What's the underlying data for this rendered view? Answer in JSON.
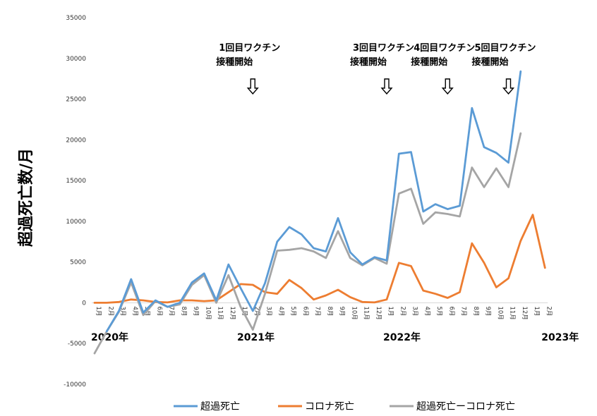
{
  "chart_data": {
    "type": "line",
    "ylabel": "超過死亡数/月",
    "ylim": [
      -10000,
      35000
    ],
    "yticks": [
      35000,
      30000,
      25000,
      20000,
      15000,
      10000,
      5000,
      0,
      -5000,
      -10000
    ],
    "categories": [
      "1月",
      "2月",
      "3月",
      "4月",
      "5月",
      "6月",
      "7月",
      "8月",
      "9月",
      "10月",
      "11月",
      "12月",
      "1月",
      "2月",
      "3月",
      "4月",
      "5月",
      "6月",
      "7月",
      "8月",
      "9月",
      "10月",
      "11月",
      "12月",
      "1月",
      "2月",
      "3月",
      "4月",
      "5月",
      "6月",
      "7月",
      "8月",
      "9月",
      "10月",
      "11月",
      "12月",
      "1月",
      "2月"
    ],
    "year_labels": [
      {
        "text": "2020年",
        "index": 0
      },
      {
        "text": "2021年",
        "index": 12
      },
      {
        "text": "2022年",
        "index": 24
      },
      {
        "text": "2023年",
        "index": 37
      }
    ],
    "series": [
      {
        "name": "超過死亡",
        "color": "#5b9bd5",
        "values": [
          null,
          -3500,
          -1000,
          2900,
          -1200,
          300,
          -500,
          0,
          2500,
          3600,
          300,
          4700,
          1800,
          -1000,
          2400,
          7500,
          9300,
          8400,
          6700,
          6300,
          10400,
          6200,
          4700,
          5600,
          5200,
          18300,
          18500,
          11200,
          12100,
          11500,
          11900,
          23900,
          19100,
          18400,
          17200,
          28400,
          null,
          null
        ]
      },
      {
        "name": "コロナ死亡",
        "color": "#ed7d31",
        "values": [
          0,
          0,
          100,
          400,
          300,
          100,
          50,
          300,
          300,
          200,
          300,
          1300,
          2300,
          2200,
          1300,
          1100,
          2800,
          1800,
          400,
          900,
          1600,
          700,
          100,
          50,
          400,
          4900,
          4500,
          1500,
          1100,
          600,
          1300,
          7300,
          4900,
          1900,
          3000,
          7600,
          10800,
          4300
        ]
      },
      {
        "name": "超過死亡ーコロナ死亡",
        "color": "#a5a5a5",
        "values": [
          -6200,
          -3500,
          -1100,
          2500,
          -1500,
          200,
          -500,
          -200,
          2200,
          3400,
          0,
          3400,
          -500,
          -3300,
          1100,
          6400,
          6500,
          6700,
          6300,
          5500,
          8800,
          5500,
          4600,
          5500,
          4800,
          13400,
          14000,
          9700,
          11100,
          10900,
          10600,
          16600,
          14200,
          16500,
          14200,
          20800,
          null,
          null
        ]
      }
    ],
    "annotations": [
      {
        "line1": "1回目ワクチン",
        "line2": "接種開始",
        "index": 13
      },
      {
        "line1": "3回目ワクチン",
        "line2": "接種開始",
        "index": 24
      },
      {
        "line1": "4回目ワクチン",
        "line2": "接種開始",
        "index": 29
      },
      {
        "line1": "5回目ワクチン",
        "line2": "接種開始",
        "index": 34
      }
    ],
    "legend_position": "bottom",
    "grid": false
  }
}
